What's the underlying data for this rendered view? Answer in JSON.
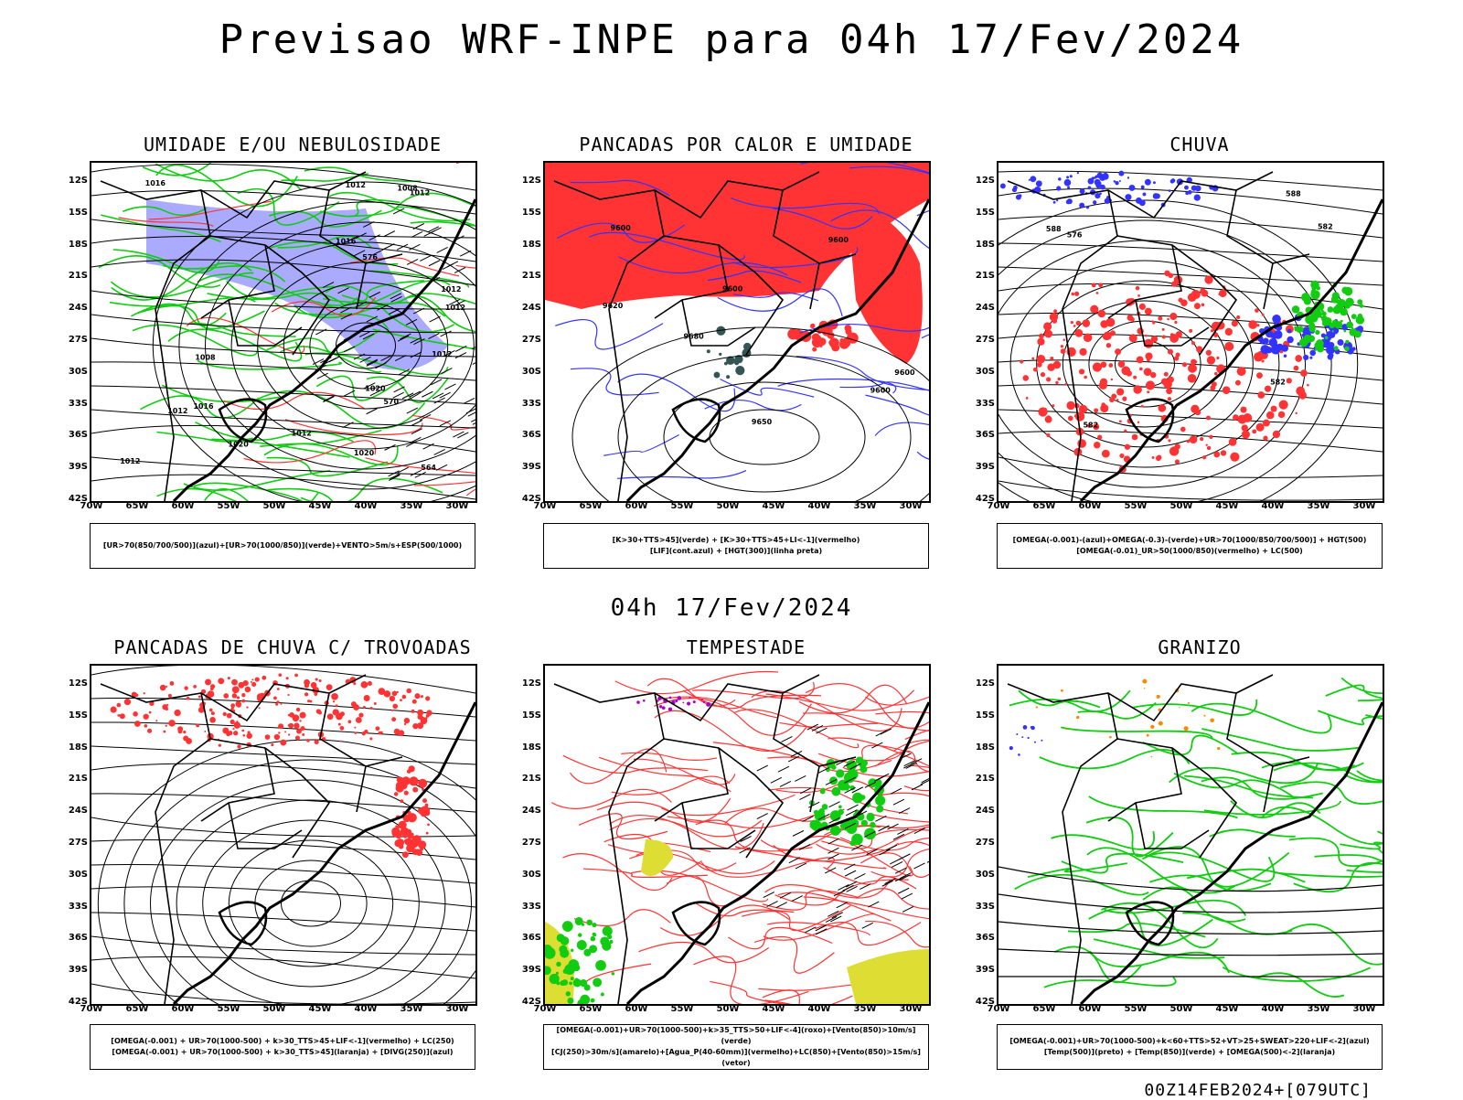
{
  "title": "Previsao WRF-INPE  para 04h 17/Fev/2024",
  "mid_date": "04h 17/Fev/2024",
  "footer": "00Z14FEB2024+[079UTC]",
  "lat_labels": [
    "12S",
    "15S",
    "18S",
    "21S",
    "24S",
    "27S",
    "30S",
    "33S",
    "36S",
    "39S",
    "42S"
  ],
  "lon_labels": [
    "70W",
    "65W",
    "60W",
    "55W",
    "50W",
    "45W",
    "40W",
    "35W",
    "30W"
  ],
  "panels": [
    {
      "title": "UMIDADE E/OU NEBULOSIDADE",
      "legend": [
        "[UR>70(850/700/500)](azul)+[UR>70(1000/850)](verde)+VENTO>5m/s+ESP(500/1000)"
      ]
    },
    {
      "title": "PANCADAS POR CALOR E UMIDADE",
      "legend": [
        "[K>30+TTS>45](verde) + [K>30+TTS>45+LI<-1](vermelho)",
        "[LIF](cont.azul) + [HGT(300)](linha preta)"
      ]
    },
    {
      "title": "CHUVA",
      "legend": [
        "[OMEGA(-0.001)-(azul)+OMEGA(-0.3)-(verde)+UR>70(1000/850/700/500)] + HGT(500)",
        "[OMEGA(-0.01)_UR>50(1000/850)(vermelho) + LC(500)"
      ]
    },
    {
      "title": "PANCADAS DE CHUVA C/ TROVOADAS",
      "legend": [
        "[OMEGA(-0.001) + UR>70(1000-500) + k>30_TTS>45+LIF<-1](vermelho) + LC(250)",
        "[OMEGA(-0.001) + UR>70(1000-500) + k>30_TTS>45](laranja) + [DIVG(250)](azul)"
      ]
    },
    {
      "title": "TEMPESTADE",
      "legend": [
        "[OMEGA(-0.001)+UR>70(1000-500)+k>35_TTS>50+LIF<-4](roxo)+[Vento(850)>10m/s](verde)",
        "[CJ(250)>30m/s](amarelo)+[Agua_P(40-60mm)](vermelho)+LC(850)+[Vento(850)>15m/s](vetor)"
      ]
    },
    {
      "title": "GRANIZO",
      "legend": [
        "[OMEGA(-0.001)+UR>70(1000-500)+k<60+TTS>52+VT>25+SWEAT>220+LIF<-2](azul)",
        "[Temp(500)](preto) + [Temp(850)](verde) + [OMEGA(500)<-2](laranja)"
      ]
    }
  ],
  "map_labels": {
    "p1": [
      "1012",
      "1012",
      "1016",
      "1012",
      "1020",
      "1012",
      "1008",
      "1012",
      "1012",
      "1008",
      "1012",
      "1016",
      "1016",
      "1012",
      "1020",
      "1020",
      "576",
      "570",
      "564"
    ],
    "p2": [
      "9680",
      "9650",
      "9600",
      "9620",
      "9600",
      "9600",
      "9600",
      "9600"
    ],
    "p3": [
      "576",
      "582",
      "588",
      "582",
      "582",
      "588"
    ]
  },
  "colors": {
    "red": "#f33",
    "green": "#1c1",
    "blue": "#33f",
    "lavender": "#aaf",
    "yellow": "#dd3",
    "purple": "#a0c",
    "orange": "#f80",
    "teal": "#355"
  }
}
